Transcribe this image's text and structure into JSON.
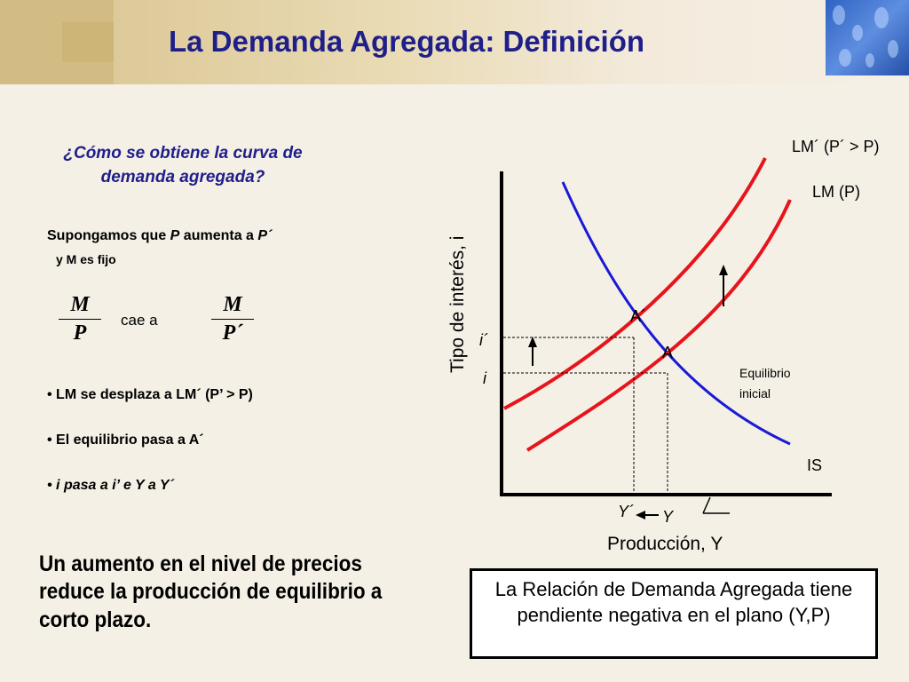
{
  "title": "La Demanda Agregada: Definición",
  "left": {
    "question": "¿Cómo se obtiene la curva de demanda agregada?",
    "suppose_a": "Supongamos que ",
    "suppose_p": "P",
    "suppose_b": " aumenta a ",
    "suppose_p2": "P´",
    "m_fixed": "y M es fijo",
    "frac1_num": "M",
    "frac1_den": "P",
    "falls_to": "cae a",
    "frac2_num": "M",
    "frac2_den": "P´",
    "bullet1": "• LM se desplaza a LM´ (P’ > P)",
    "bullet2": "• El equilibrio pasa a A´",
    "bullet3": "• i pasa a i’ e Y a Y´"
  },
  "conclusion": "Un aumento en el nivel de precios reduce la producción de equilibrio a corto plazo.",
  "boxed_text": "La Relación de Demanda Agregada tiene pendiente negativa en el plano (Y,P)",
  "graph": {
    "ylabel": "Tipo de interés, i",
    "xlabel": "Producción, Y",
    "lm_prime_label": "LM´ (P´ > P)",
    "lm_label": "LM (P)",
    "is_label": "IS",
    "point_a_prime": "A´",
    "point_a": "A",
    "i_prime": "i´",
    "i": "i",
    "y_prime": "Y´",
    "y": "Y",
    "eq_line1": "Equilibrio",
    "eq_line2": "inicial"
  },
  "colors": {
    "title": "#1f1f8a",
    "lm_curves": "#e8141c",
    "is_curve": "#1a1ad6",
    "header_band": "#e2cf9f",
    "background": "#f5f0e6"
  }
}
